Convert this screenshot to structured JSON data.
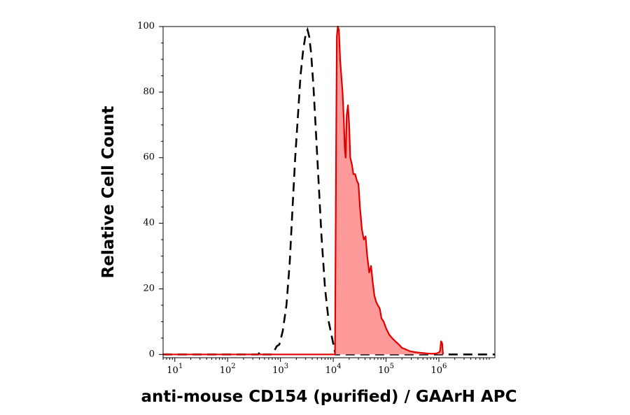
{
  "chart_data": {
    "type": "area",
    "xlabel": "anti-mouse CD154 (purified) / GAArH APC",
    "ylabel": "Relative Cell Count",
    "x_scale": "log",
    "xlim": [
      6,
      11500000
    ],
    "ylim": [
      -1,
      100
    ],
    "y_ticks": [
      0,
      20,
      40,
      60,
      80,
      100
    ],
    "x_ticks": [
      {
        "value": 10,
        "base": "10",
        "exp": "1"
      },
      {
        "value": 100,
        "base": "10",
        "exp": "2"
      },
      {
        "value": 1000,
        "base": "10",
        "exp": "3"
      },
      {
        "value": 10000,
        "base": "10",
        "exp": "4"
      },
      {
        "value": 100000,
        "base": "10",
        "exp": "5"
      },
      {
        "value": 1000000,
        "base": "10",
        "exp": "6"
      }
    ],
    "series": [
      {
        "style": "dashed-black",
        "color": "#000000",
        "points": [
          [
            6,
            0
          ],
          [
            100,
            0
          ],
          [
            380,
            0
          ],
          [
            420,
            1
          ],
          [
            470,
            0
          ],
          [
            700,
            0
          ],
          [
            760,
            1
          ],
          [
            850,
            2.5
          ],
          [
            950,
            3
          ],
          [
            1100,
            7
          ],
          [
            1300,
            15
          ],
          [
            1500,
            28
          ],
          [
            1700,
            45
          ],
          [
            1900,
            60
          ],
          [
            2150,
            73
          ],
          [
            2400,
            85
          ],
          [
            2700,
            93
          ],
          [
            3000,
            97.5
          ],
          [
            3250,
            99
          ],
          [
            3500,
            97
          ],
          [
            3800,
            92
          ],
          [
            4200,
            82
          ],
          [
            4700,
            68
          ],
          [
            5300,
            52
          ],
          [
            6000,
            36
          ],
          [
            7000,
            20
          ],
          [
            8200,
            10
          ],
          [
            9500,
            5
          ],
          [
            11000,
            0
          ],
          [
            11500000,
            0
          ]
        ]
      },
      {
        "style": "filled-red",
        "color": "#e00000",
        "fill": "#ff9a9a",
        "points": [
          [
            6,
            0
          ],
          [
            9000,
            0
          ],
          [
            10800,
            0
          ],
          [
            11300,
            60
          ],
          [
            11700,
            97
          ],
          [
            12200,
            100
          ],
          [
            12800,
            99
          ],
          [
            13500,
            90
          ],
          [
            14200,
            85
          ],
          [
            15000,
            80
          ],
          [
            15800,
            72
          ],
          [
            16500,
            63
          ],
          [
            17200,
            60
          ],
          [
            18000,
            73
          ],
          [
            19000,
            76
          ],
          [
            20000,
            70
          ],
          [
            21000,
            60
          ],
          [
            22500,
            58
          ],
          [
            24000,
            55
          ],
          [
            26000,
            55
          ],
          [
            28000,
            53
          ],
          [
            30000,
            52
          ],
          [
            32000,
            45
          ],
          [
            35000,
            38
          ],
          [
            38000,
            35
          ],
          [
            41000,
            36
          ],
          [
            44000,
            30
          ],
          [
            48000,
            25
          ],
          [
            52000,
            27
          ],
          [
            56000,
            22
          ],
          [
            60000,
            18
          ],
          [
            65000,
            16
          ],
          [
            70000,
            15
          ],
          [
            76000,
            14
          ],
          [
            82000,
            11
          ],
          [
            90000,
            10
          ],
          [
            100000,
            8
          ],
          [
            115000,
            6
          ],
          [
            130000,
            5
          ],
          [
            150000,
            4
          ],
          [
            175000,
            3
          ],
          [
            200000,
            2
          ],
          [
            240000,
            1.5
          ],
          [
            280000,
            1
          ],
          [
            350000,
            0.7
          ],
          [
            450000,
            0.5
          ],
          [
            600000,
            0.3
          ],
          [
            750000,
            0.2
          ],
          [
            900000,
            0.3
          ],
          [
            1000000,
            0.6
          ],
          [
            1050000,
            1
          ],
          [
            1100000,
            4
          ],
          [
            1150000,
            3.5
          ],
          [
            1200000,
            0
          ]
        ]
      }
    ]
  }
}
